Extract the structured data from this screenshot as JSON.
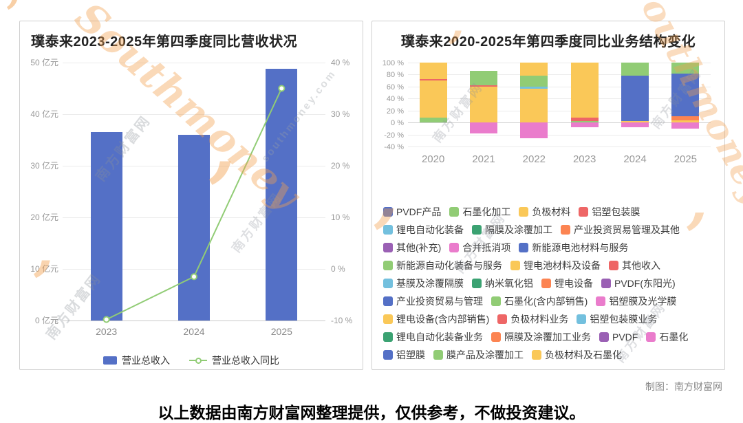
{
  "page": {
    "disclaimer": "以上数据由南方财富网整理提供，仅供参考，不做投资建议。",
    "credit": "制图：南方财富网",
    "watermarks": {
      "cn": "南方财富网",
      "en": "Southmoney",
      "domain": "southmoney.com",
      "accent_color": "#f3a14f"
    }
  },
  "chart_data": [
    {
      "type": "bar+line",
      "title": "璞泰来2023-2025年第四季度同比营收状况",
      "categories": [
        "2023",
        "2024",
        "2025"
      ],
      "series": [
        {
          "name": "营业总收入",
          "type": "bar",
          "axis": "left",
          "unit": "亿元",
          "color": "#5470c6",
          "values": [
            36.5,
            36,
            48.8
          ]
        },
        {
          "name": "营业总收入同比",
          "type": "line",
          "axis": "right",
          "unit": "%",
          "color": "#91cc75",
          "values": [
            -9.8,
            -1.5,
            35
          ]
        }
      ],
      "left_axis": {
        "min": 0,
        "max": 50,
        "ticks": [
          "0 亿元",
          "10 亿元",
          "20 亿元",
          "30 亿元",
          "40 亿元",
          "50 亿元"
        ]
      },
      "right_axis": {
        "min": -10,
        "max": 40,
        "ticks": [
          "-10 %",
          "0 %",
          "10 %",
          "20 %",
          "30 %",
          "40 %"
        ]
      },
      "legend_position": "bottom",
      "grid": true
    },
    {
      "type": "stacked-bar",
      "title": "璞泰来2020-2025年第四季度同比业务结构变化",
      "categories": [
        "2020",
        "2021",
        "2022",
        "2023",
        "2024",
        "2025"
      ],
      "unit": "%",
      "y_axis": {
        "min": -40,
        "max": 100,
        "ticks": [
          "100 %",
          "80 %",
          "60 %",
          "40 %",
          "20 %",
          "0 %",
          "-20 %",
          "-40 %"
        ]
      },
      "bars": [
        {
          "category": "2020",
          "segments": [
            {
              "label": "石墨化加工",
              "color": "#91cc75",
              "value": 8
            },
            {
              "label": "负极材料",
              "color": "#fac858",
              "value": 62
            },
            {
              "label": "铝塑包装膜",
              "color": "#ee6666",
              "value": 3
            },
            {
              "label": "锂电设备(含内部销售)",
              "color": "#fac858",
              "value": 27
            }
          ]
        },
        {
          "category": "2021",
          "segments": [
            {
              "label": "负极材料及石墨化",
              "color": "#fac858",
              "value": 60
            },
            {
              "label": "其他收入",
              "color": "#ee6666",
              "value": 2
            },
            {
              "label": "膜产品及涂覆加工",
              "color": "#91cc75",
              "value": 24
            },
            {
              "label": "合并抵消项",
              "color": "#ea7ccc",
              "value": -18
            }
          ]
        },
        {
          "category": "2022",
          "segments": [
            {
              "label": "负极材料及石墨化",
              "color": "#fac858",
              "value": 56
            },
            {
              "label": "铝塑包装膜业务",
              "color": "#73c0de",
              "value": 4
            },
            {
              "label": "膜产品及涂覆加工",
              "color": "#91cc75",
              "value": 18
            },
            {
              "label": "锂电设备(含内部销售)",
              "color": "#fac858",
              "value": 22
            },
            {
              "label": "合并抵消项",
              "color": "#ea7ccc",
              "value": -26
            }
          ]
        },
        {
          "category": "2023",
          "segments": [
            {
              "label": "石墨化(含内部销售)",
              "color": "#91cc75",
              "value": 3
            },
            {
              "label": "其他收入",
              "color": "#ee6666",
              "value": 5
            },
            {
              "label": "负极材料",
              "color": "#fac858",
              "value": 92
            },
            {
              "label": "合并抵消项",
              "color": "#ea7ccc",
              "value": -8
            }
          ]
        },
        {
          "category": "2024",
          "segments": [
            {
              "label": "锂电池材料及设备",
              "color": "#fac858",
              "value": 2
            },
            {
              "label": "新能源电池材料与服务",
              "color": "#5470c6",
              "value": 76
            },
            {
              "label": "新能源自动化装备与服务",
              "color": "#91cc75",
              "value": 22
            },
            {
              "label": "合并抵消项",
              "color": "#ea7ccc",
              "value": -8
            }
          ]
        },
        {
          "category": "2025",
          "segments": [
            {
              "label": "锂电池材料及设备",
              "color": "#fac858",
              "value": 4
            },
            {
              "label": "产业投资贸易管理及其他",
              "color": "#fc8452",
              "value": 7
            },
            {
              "label": "新能源电池材料与服务",
              "color": "#5470c6",
              "value": 71
            },
            {
              "label": "新能源自动化装备与服务",
              "color": "#91cc75",
              "value": 18
            },
            {
              "label": "合并抵消项",
              "color": "#ea7ccc",
              "value": -10
            }
          ]
        }
      ],
      "legend": [
        {
          "label": "PVDF产品",
          "color": "#5470c6"
        },
        {
          "label": "石墨化加工",
          "color": "#91cc75"
        },
        {
          "label": "负极材料",
          "color": "#fac858"
        },
        {
          "label": "铝塑包装膜",
          "color": "#ee6666"
        },
        {
          "label": "锂电自动化装备",
          "color": "#73c0de"
        },
        {
          "label": "隔膜及涂覆加工",
          "color": "#3ba272"
        },
        {
          "label": "产业投资贸易管理及其他",
          "color": "#fc8452"
        },
        {
          "label": "其他(补充)",
          "color": "#9a60b4"
        },
        {
          "label": "合并抵消项",
          "color": "#ea7ccc"
        },
        {
          "label": "新能源电池材料与服务",
          "color": "#5470c6"
        },
        {
          "label": "新能源自动化装备与服务",
          "color": "#91cc75"
        },
        {
          "label": "锂电池材料及设备",
          "color": "#fac858"
        },
        {
          "label": "其他收入",
          "color": "#ee6666"
        },
        {
          "label": "基膜及涂覆隔膜",
          "color": "#73c0de"
        },
        {
          "label": "纳米氧化铝",
          "color": "#3ba272"
        },
        {
          "label": "锂电设备",
          "color": "#fc8452"
        },
        {
          "label": "PVDF(东阳光)",
          "color": "#9a60b4"
        },
        {
          "label": "产业投资贸易与管理",
          "color": "#5470c6"
        },
        {
          "label": "石墨化(含内部销售)",
          "color": "#91cc75"
        },
        {
          "label": "铝塑膜及光学膜",
          "color": "#ea7ccc"
        },
        {
          "label": "锂电设备(含内部销售)",
          "color": "#fac858"
        },
        {
          "label": "负极材料业务",
          "color": "#ee6666"
        },
        {
          "label": "铝塑包装膜业务",
          "color": "#73c0de"
        },
        {
          "label": "锂电自动化装备业务",
          "color": "#3ba272"
        },
        {
          "label": "隔膜及涂覆加工业务",
          "color": "#fc8452"
        },
        {
          "label": "PVDF",
          "color": "#9a60b4"
        },
        {
          "label": "石墨化",
          "color": "#ea7ccc"
        },
        {
          "label": "铝塑膜",
          "color": "#5470c6"
        },
        {
          "label": "膜产品及涂覆加工",
          "color": "#91cc75"
        },
        {
          "label": "负极材料及石墨化",
          "color": "#fac858"
        }
      ],
      "legend_position": "bottom",
      "grid": true
    }
  ]
}
